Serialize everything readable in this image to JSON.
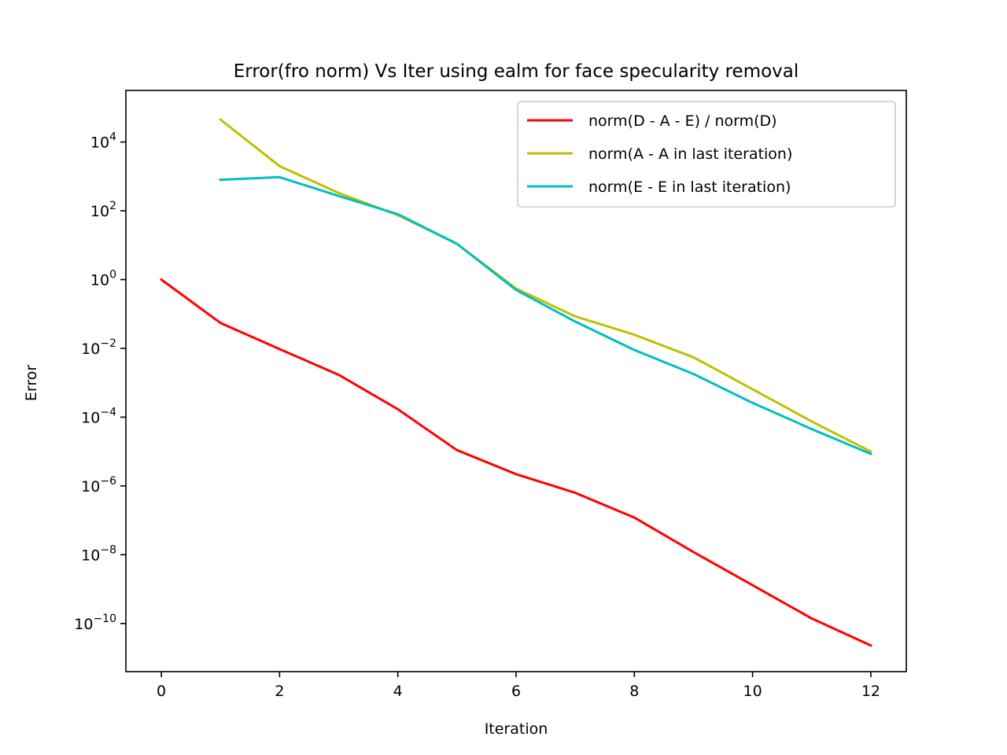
{
  "chart_data": {
    "type": "line",
    "title": "Error(fro norm) Vs Iter using ealm for face specularity removal",
    "xlabel": "Iteration",
    "ylabel": "Error",
    "xlim": [
      -0.6,
      12.6
    ],
    "ylim_log10": [
      -11.4,
      5.5
    ],
    "yscale": "log",
    "x_ticks": [
      0,
      2,
      4,
      6,
      8,
      10,
      12
    ],
    "y_ticks": [
      {
        "base": "10",
        "exp": "4",
        "log10": 4
      },
      {
        "base": "10",
        "exp": "2",
        "log10": 2
      },
      {
        "base": "10",
        "exp": "0",
        "log10": 0
      },
      {
        "base": "10",
        "exp": "−2",
        "log10": -2
      },
      {
        "base": "10",
        "exp": "−4",
        "log10": -4
      },
      {
        "base": "10",
        "exp": "−6",
        "log10": -6
      },
      {
        "base": "10",
        "exp": "−8",
        "log10": -8
      },
      {
        "base": "10",
        "exp": "−10",
        "log10": -10
      }
    ],
    "grid": false,
    "legend_position": "top-right",
    "series": [
      {
        "name": "norm(D - A - E) / norm(D)",
        "color": "#ff0000",
        "x": [
          0,
          1,
          2,
          3,
          4,
          5,
          6,
          7,
          8,
          9,
          10,
          11,
          12
        ],
        "y": [
          1.0,
          0.055,
          0.0095,
          0.0017,
          0.00017,
          1.1e-05,
          2.2e-06,
          6.3e-07,
          1.2e-07,
          1.2e-08,
          1.3e-09,
          1.4e-10,
          2.3e-11
        ]
      },
      {
        "name": "norm(A - A in last iteration)",
        "color": "#bfbf00",
        "x": [
          1,
          2,
          3,
          4,
          5,
          6,
          7,
          8,
          9,
          10,
          11,
          12
        ],
        "y": [
          45000,
          2000,
          330,
          75,
          11,
          0.55,
          0.085,
          0.025,
          0.0055,
          0.00065,
          7.5e-05,
          1e-05
        ]
      },
      {
        "name": "norm(E - E in last iteration)",
        "color": "#00bfbf",
        "x": [
          1,
          2,
          3,
          4,
          5,
          6,
          7,
          8,
          9,
          10,
          11,
          12
        ],
        "y": [
          800,
          950,
          270,
          80,
          11,
          0.5,
          0.06,
          0.009,
          0.0018,
          0.00026,
          4.5e-05,
          8.5e-06
        ]
      }
    ]
  }
}
